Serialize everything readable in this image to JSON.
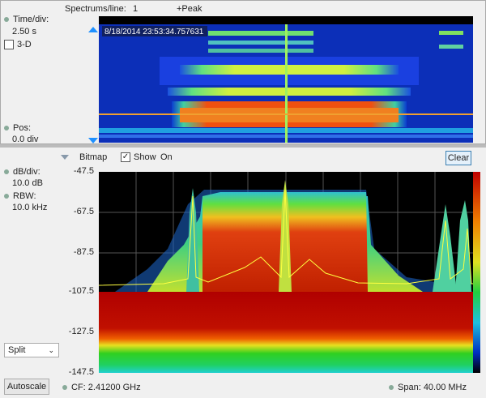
{
  "top": {
    "spectrums_label": "Spectrums/line:",
    "spectrums_value": "1",
    "detector": "+Peak",
    "timediv_label": "Time/div:",
    "timediv_value": "2.50 s",
    "three_d_label": "3-D",
    "three_d_checked": false,
    "pos_label": "Pos:",
    "pos_value": "0.0 div",
    "timestamp": "8/18/2014 23:53:34.757631"
  },
  "bottom": {
    "bitmap_label": "Bitmap",
    "show_label": "Show",
    "show_checked": true,
    "on_label": "On",
    "clear_label": "Clear",
    "dbdiv_label": "dB/div:",
    "dbdiv_value": "10.0 dB",
    "rbw_label": "RBW:",
    "rbw_value": "10.0 kHz",
    "view_select": "Split",
    "autoscale_label": "Autoscale",
    "cf_label": "CF:",
    "cf_value": "2.41200 GHz",
    "span_label": "Span:",
    "span_value": "40.00 MHz",
    "y_ticks": [
      "-47.5",
      "-67.5",
      "-87.5",
      "-107.5",
      "-127.5",
      "-147.5"
    ]
  },
  "colors": {
    "accent": "#1e90ff",
    "trace": "#ffff40"
  }
}
